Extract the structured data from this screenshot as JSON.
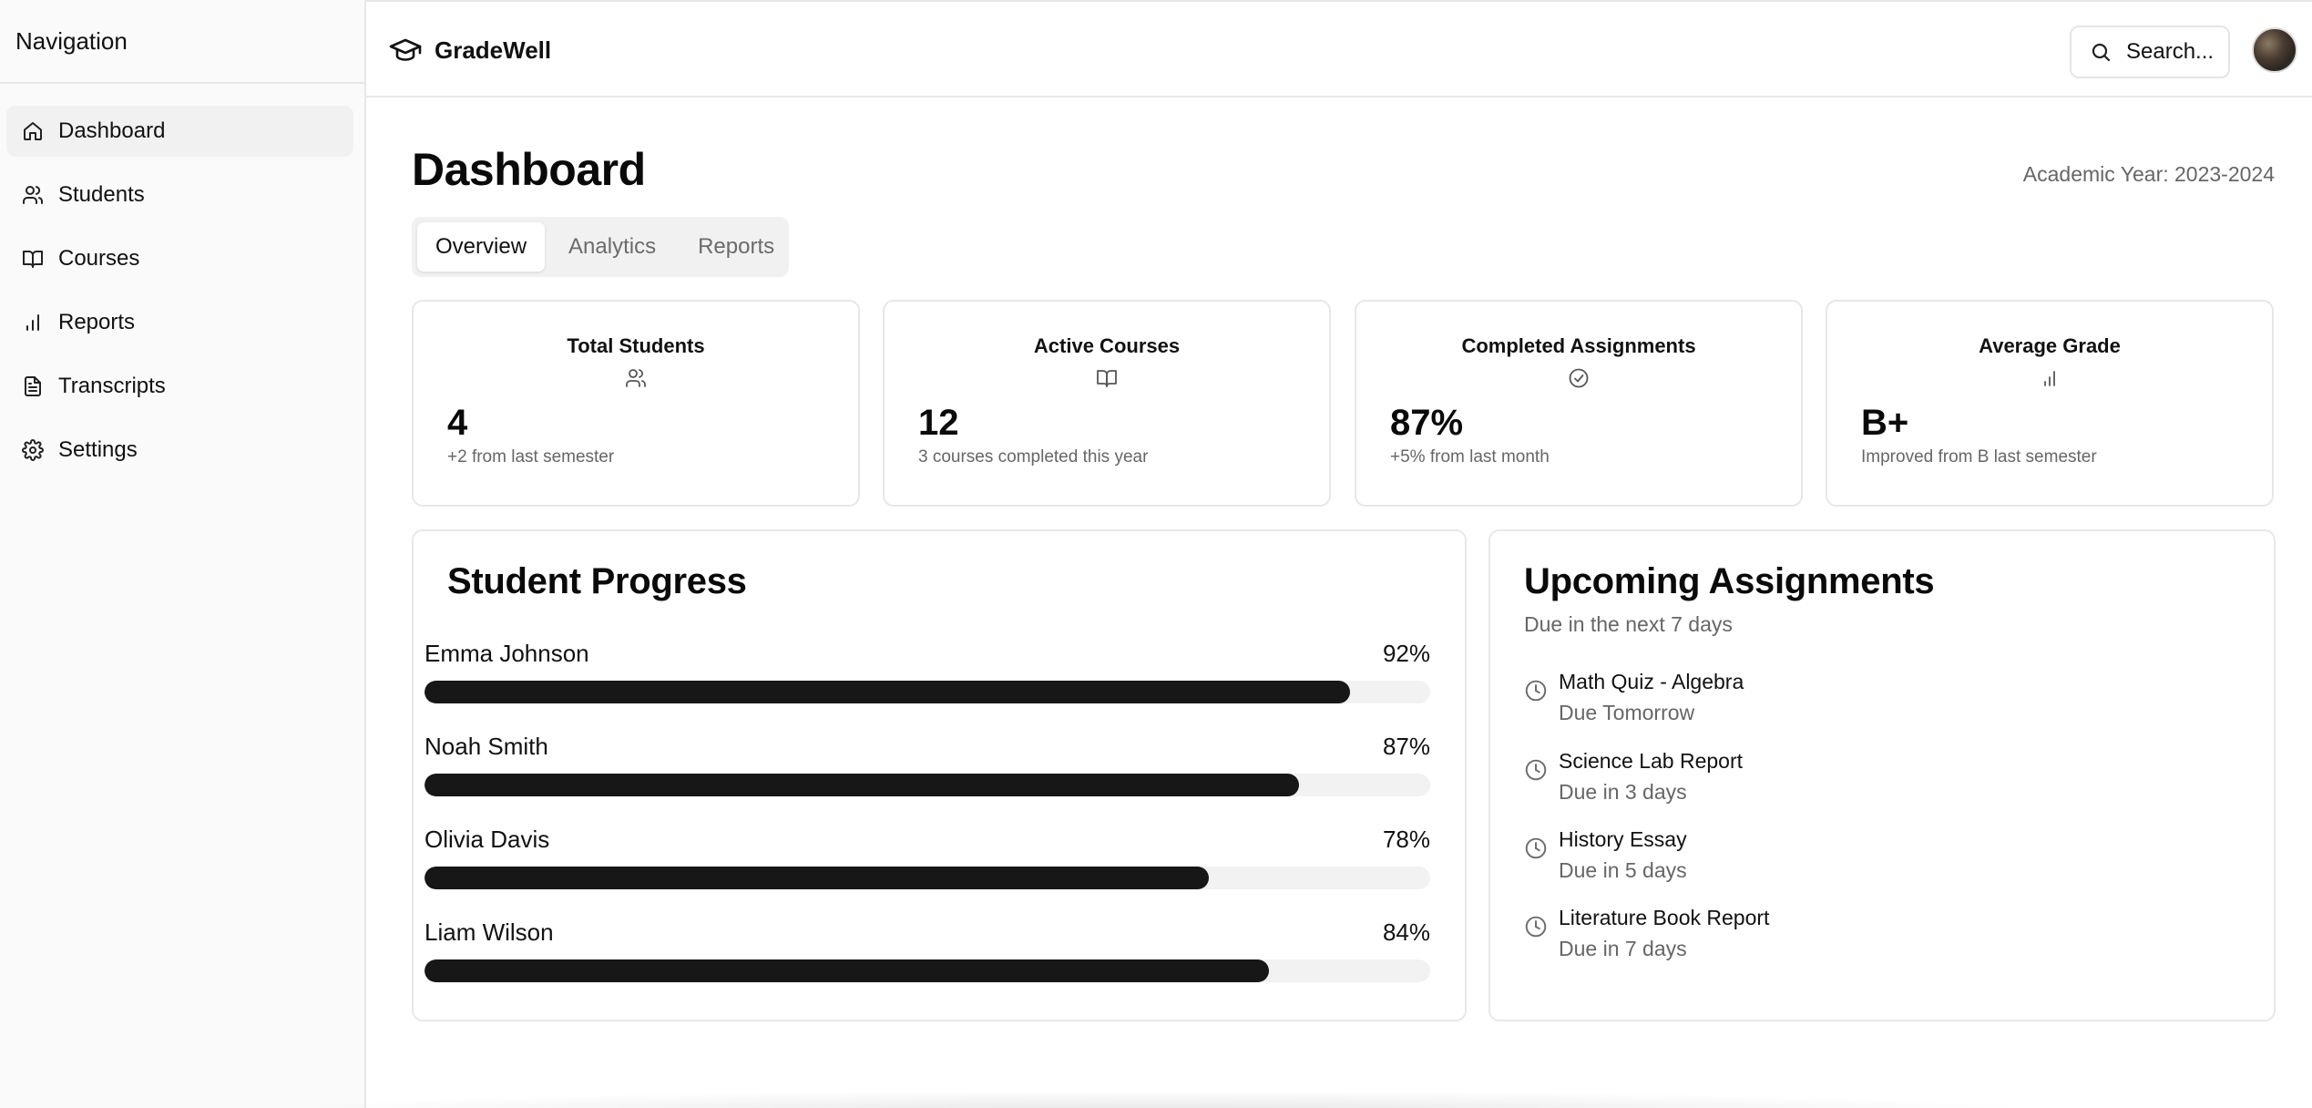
{
  "sidebar": {
    "title": "Navigation",
    "items": [
      {
        "label": "Dashboard",
        "icon": "home-icon"
      },
      {
        "label": "Students",
        "icon": "users-icon"
      },
      {
        "label": "Courses",
        "icon": "book-icon"
      },
      {
        "label": "Reports",
        "icon": "bar-chart-icon"
      },
      {
        "label": "Transcripts",
        "icon": "file-text-icon"
      },
      {
        "label": "Settings",
        "icon": "gear-icon"
      }
    ],
    "active": "Dashboard"
  },
  "header": {
    "brand": "GradeWell",
    "brand_icon": "graduation-cap-icon",
    "search_label": "Search...",
    "search_icon": "search-icon"
  },
  "page": {
    "title": "Dashboard",
    "academic_year": "Academic Year: 2023-2024",
    "tabs": [
      {
        "label": "Overview"
      },
      {
        "label": "Analytics"
      },
      {
        "label": "Reports"
      }
    ],
    "active_tab": "Overview"
  },
  "stats": [
    {
      "title": "Total Students",
      "icon": "users-icon",
      "value": "4",
      "sub": "+2 from last semester"
    },
    {
      "title": "Active Courses",
      "icon": "book-icon",
      "value": "12",
      "sub": "3 courses completed this year"
    },
    {
      "title": "Completed Assignments",
      "icon": "check-circle-icon",
      "value": "87%",
      "sub": "+5% from last month"
    },
    {
      "title": "Average Grade",
      "icon": "bar-chart-icon",
      "value": "B+",
      "sub": "Improved from B last semester"
    }
  ],
  "progress": {
    "title": "Student Progress",
    "students": [
      {
        "name": "Emma Johnson",
        "label": "92%",
        "value": 92
      },
      {
        "name": "Noah Smith",
        "label": "87%",
        "value": 87
      },
      {
        "name": "Olivia Davis",
        "label": "78%",
        "value": 78
      },
      {
        "name": "Liam Wilson",
        "label": "84%",
        "value": 84
      }
    ]
  },
  "assignments": {
    "title": "Upcoming Assignments",
    "description": "Due in the next 7 days",
    "items": [
      {
        "title": "Math Quiz - Algebra",
        "due": "Due Tomorrow"
      },
      {
        "title": "Science Lab Report",
        "due": "Due in 3 days"
      },
      {
        "title": "History Essay",
        "due": "Due in 5 days"
      },
      {
        "title": "Literature Book Report",
        "due": "Due in 7 days"
      }
    ]
  },
  "colors": {
    "progress_fill": "#171717",
    "progress_track": "#f2f2f2",
    "border": "#e7e7e7"
  }
}
